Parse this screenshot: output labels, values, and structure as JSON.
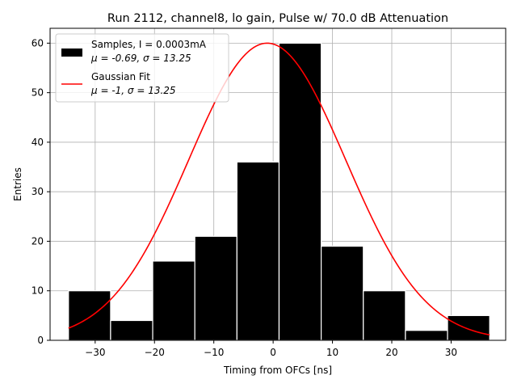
{
  "chart_data": {
    "type": "bar",
    "title": "Run 2112, channel8, lo gain, Pulse w/ 70.0 dB Attenuation",
    "xlabel": "Timing from OFCs [ns]",
    "ylabel": "Entries",
    "xlim": [
      -37.6,
      39.2
    ],
    "ylim": [
      0,
      63
    ],
    "grid": true,
    "xticks": [
      -30,
      -20,
      -10,
      0,
      10,
      20,
      30
    ],
    "yticks": [
      0,
      10,
      20,
      30,
      40,
      50,
      60
    ],
    "xtick_labels": [
      "−30",
      "−20",
      "−10",
      "0",
      "10",
      "20",
      "30"
    ],
    "ytick_labels": [
      "0",
      "10",
      "20",
      "30",
      "40",
      "50",
      "60"
    ],
    "bin_edges": [
      -34.5,
      -27.4,
      -20.3,
      -13.2,
      -6.1,
      1.0,
      8.1,
      15.2,
      22.3,
      29.4,
      36.5
    ],
    "values": [
      10,
      4,
      16,
      21,
      36,
      60,
      19,
      10,
      2,
      5
    ],
    "bar_color": "#000000",
    "edge_color": "#ffffff",
    "fit": {
      "type": "gaussian",
      "amplitude": 60,
      "mu": -1,
      "sigma": 13.25,
      "x_range": [
        -34.5,
        36.5
      ],
      "color": "#ff0000"
    },
    "legend": {
      "placement": "top-left",
      "entries": [
        {
          "line1": "Samples, I = 0.0003mA",
          "mu_label": "μ = -0.69, ",
          "sigma_label": "σ = 13.25"
        },
        {
          "line1": "Gaussian Fit",
          "mu_label": "μ = -1, ",
          "sigma_label": "σ = 13.25"
        }
      ]
    }
  }
}
